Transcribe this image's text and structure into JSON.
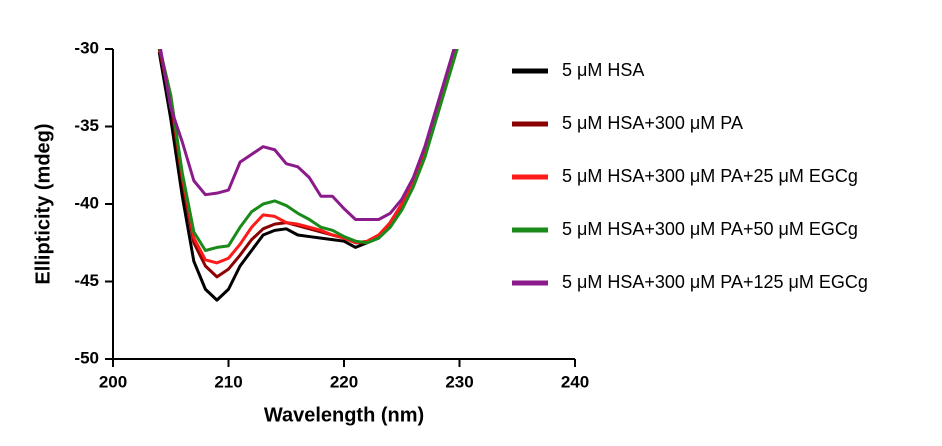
{
  "chart_data": {
    "type": "line",
    "x_label": "Wavelength (nm)",
    "y_label": "Ellipticity (mdeg)",
    "x": [
      204,
      205,
      206,
      207,
      208,
      209,
      210,
      211,
      212,
      213,
      214,
      215,
      216,
      217,
      218,
      219,
      220,
      221,
      222,
      223,
      224,
      225,
      226,
      227,
      228,
      229,
      230
    ],
    "series": [
      {
        "name": "5 μM HSA",
        "color": "#000000",
        "values": [
          -30.2,
          -34.5,
          -39.5,
          -43.7,
          -45.5,
          -46.2,
          -45.5,
          -44.0,
          -43.0,
          -42.0,
          -41.7,
          -41.6,
          -42.0,
          -42.1,
          -42.2,
          -42.3,
          -42.4,
          -42.8,
          -42.5,
          -42.2,
          -41.2,
          -40.0,
          -38.5,
          -36.5,
          -34.0,
          -31.5,
          -29.0
        ]
      },
      {
        "name": "5 μM HSA+300 μM PA",
        "color": "#8b0000",
        "values": [
          -30.0,
          -33.5,
          -38.5,
          -42.5,
          -44.0,
          -44.7,
          -44.2,
          -43.3,
          -42.3,
          -41.6,
          -41.3,
          -41.2,
          -41.4,
          -41.6,
          -41.8,
          -42.0,
          -42.2,
          -42.5,
          -42.5,
          -42.1,
          -41.3,
          -40.1,
          -38.6,
          -36.6,
          -34.1,
          -31.6,
          -29.1
        ]
      },
      {
        "name": "5 μM HSA+300 μM PA+25 μM EGCg",
        "color": "#ff1a1a",
        "values": [
          -29.8,
          -33.0,
          -38.2,
          -42.2,
          -43.6,
          -43.8,
          -43.5,
          -42.6,
          -41.5,
          -40.7,
          -40.8,
          -41.2,
          -41.3,
          -41.5,
          -41.7,
          -42.0,
          -42.2,
          -42.5,
          -42.4,
          -42.0,
          -41.2,
          -40.0,
          -38.5,
          -36.5,
          -34.0,
          -31.5,
          -29.0
        ]
      },
      {
        "name": "5 μM HSA+300 μM PA+50 μM EGCg",
        "color": "#1a8a1a",
        "values": [
          -29.8,
          -33.0,
          -38.0,
          -41.8,
          -43.0,
          -42.8,
          -42.7,
          -41.5,
          -40.5,
          -40.0,
          -39.8,
          -40.1,
          -40.6,
          -41.0,
          -41.5,
          -41.7,
          -42.1,
          -42.4,
          -42.5,
          -42.2,
          -41.5,
          -40.4,
          -38.9,
          -37.0,
          -34.5,
          -32.0,
          -29.5
        ]
      },
      {
        "name": "5 μM HSA+300 μM PA+125 μM EGCg",
        "color": "#8b1a8b",
        "values": [
          -29.5,
          -33.8,
          -36.0,
          -38.5,
          -39.4,
          -39.3,
          -39.1,
          -37.3,
          -36.8,
          -36.3,
          -36.5,
          -37.4,
          -37.6,
          -38.3,
          -39.5,
          -39.5,
          -40.3,
          -41.0,
          -41.0,
          -41.0,
          -40.6,
          -39.7,
          -38.3,
          -36.3,
          -33.8,
          -31.3,
          -28.8
        ]
      }
    ],
    "xlim": [
      200,
      240
    ],
    "xticks": [
      200,
      210,
      220,
      230,
      240
    ],
    "ylim": [
      -50,
      -30
    ],
    "yticks": [
      -30,
      -35,
      -40,
      -45,
      -50
    ],
    "grid": false,
    "legend": "right"
  }
}
